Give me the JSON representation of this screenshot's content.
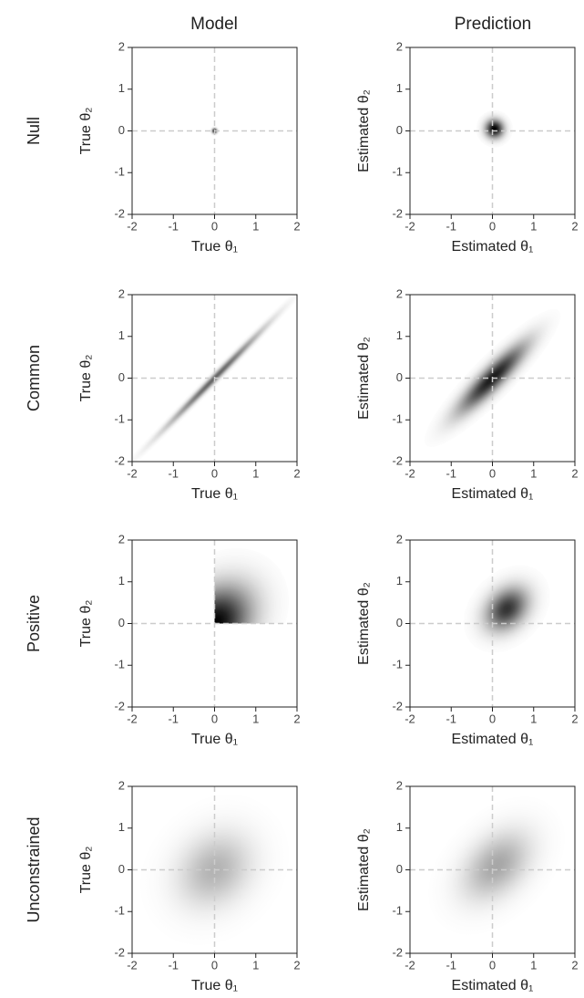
{
  "column_titles": [
    "Model",
    "Prediction"
  ],
  "row_titles": [
    "Null",
    "Common",
    "Positive",
    "Unconstrained"
  ],
  "chart_data": [
    {
      "type": "density",
      "xlabel": "True θ₁",
      "ylabel": "True θ₂",
      "xlim": [
        -2,
        2
      ],
      "ylim": [
        -2,
        2
      ],
      "xticks": [
        -2,
        -1,
        0,
        1,
        2
      ],
      "yticks": [
        -2,
        -1,
        0,
        1,
        2
      ],
      "reference": [
        0,
        0
      ],
      "mean": [
        0,
        0
      ],
      "sd": [
        0.04,
        0.04
      ],
      "rho": 0,
      "intensity": 1,
      "truncate": false
    },
    {
      "type": "density",
      "xlabel": "Estimated θ₁",
      "ylabel": "Estimated θ₂",
      "xlim": [
        -2,
        2
      ],
      "ylim": [
        -2,
        2
      ],
      "xticks": [
        -2,
        -1,
        0,
        1,
        2
      ],
      "yticks": [
        -2,
        -1,
        0,
        1,
        2
      ],
      "reference": [
        0,
        0
      ],
      "mean": [
        0.05,
        0.05
      ],
      "sd": [
        0.15,
        0.15
      ],
      "rho": 0,
      "intensity": 1,
      "truncate": false
    },
    {
      "type": "density",
      "xlabel": "True θ₁",
      "ylabel": "True θ₂",
      "xlim": [
        -2,
        2
      ],
      "ylim": [
        -2,
        2
      ],
      "xticks": [
        -2,
        -1,
        0,
        1,
        2
      ],
      "yticks": [
        -2,
        -1,
        0,
        1,
        2
      ],
      "reference": [
        0,
        0
      ],
      "mean": [
        0,
        0
      ],
      "sd": [
        0.8,
        0.8
      ],
      "rho": 0.995,
      "intensity": 0.6,
      "truncate": false
    },
    {
      "type": "density",
      "xlabel": "Estimated θ₁",
      "ylabel": "Estimated θ₂",
      "xlim": [
        -2,
        2
      ],
      "ylim": [
        -2,
        2
      ],
      "xticks": [
        -2,
        -1,
        0,
        1,
        2
      ],
      "yticks": [
        -2,
        -1,
        0,
        1,
        2
      ],
      "reference": [
        0,
        0
      ],
      "mean": [
        0,
        0
      ],
      "sd": [
        0.55,
        0.55
      ],
      "rho": 0.9,
      "intensity": 0.9,
      "truncate": false
    },
    {
      "type": "density",
      "xlabel": "True θ₁",
      "ylabel": "True θ₂",
      "xlim": [
        -2,
        2
      ],
      "ylim": [
        -2,
        2
      ],
      "xticks": [
        -2,
        -1,
        0,
        1,
        2
      ],
      "yticks": [
        -2,
        -1,
        0,
        1,
        2
      ],
      "reference": [
        0,
        0
      ],
      "mean": [
        0,
        0
      ],
      "sd": [
        0.6,
        0.6
      ],
      "rho": 0.3,
      "intensity": 1,
      "truncate": true
    },
    {
      "type": "density",
      "xlabel": "Estimated θ₁",
      "ylabel": "Estimated θ₂",
      "xlim": [
        -2,
        2
      ],
      "ylim": [
        -2,
        2
      ],
      "xticks": [
        -2,
        -1,
        0,
        1,
        2
      ],
      "yticks": [
        -2,
        -1,
        0,
        1,
        2
      ],
      "reference": [
        0,
        0
      ],
      "mean": [
        0.35,
        0.35
      ],
      "sd": [
        0.35,
        0.35
      ],
      "rho": 0.3,
      "intensity": 0.8,
      "truncate": false
    },
    {
      "type": "density",
      "xlabel": "True θ₁",
      "ylabel": "True θ₂",
      "xlim": [
        -2,
        2
      ],
      "ylim": [
        -2,
        2
      ],
      "xticks": [
        -2,
        -1,
        0,
        1,
        2
      ],
      "yticks": [
        -2,
        -1,
        0,
        1,
        2
      ],
      "reference": [
        0,
        0
      ],
      "mean": [
        0,
        0
      ],
      "sd": [
        0.6,
        0.6
      ],
      "rho": 0.2,
      "intensity": 0.3,
      "truncate": false
    },
    {
      "type": "density",
      "xlabel": "Estimated θ₁",
      "ylabel": "Estimated θ₂",
      "xlim": [
        -2,
        2
      ],
      "ylim": [
        -2,
        2
      ],
      "xticks": [
        -2,
        -1,
        0,
        1,
        2
      ],
      "yticks": [
        -2,
        -1,
        0,
        1,
        2
      ],
      "reference": [
        0,
        0
      ],
      "mean": [
        0.1,
        0.1
      ],
      "sd": [
        0.55,
        0.55
      ],
      "rho": 0.4,
      "intensity": 0.35,
      "truncate": false
    }
  ]
}
